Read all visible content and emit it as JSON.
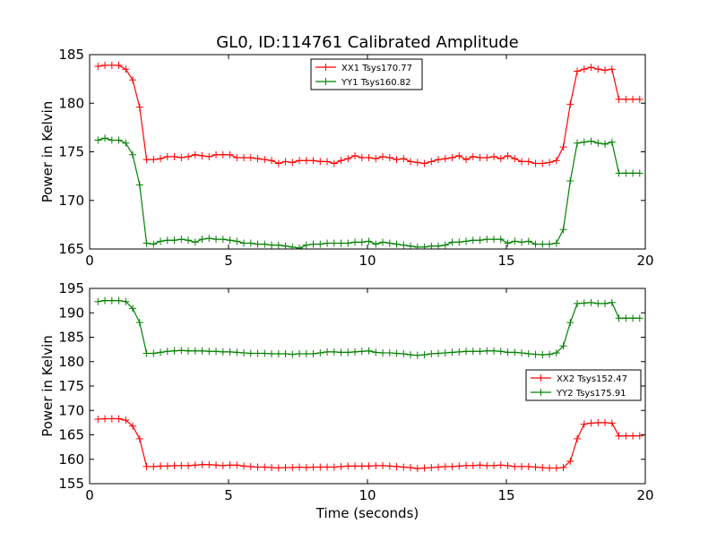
{
  "title": "GL0, ID:114761 Calibrated Amplitude",
  "xlabel": "Time (seconds)",
  "colors": {
    "XX": "#ff0000",
    "YY": "#008000"
  },
  "chart_data": [
    {
      "type": "line",
      "title": "GL0, ID:114761 Calibrated Amplitude",
      "xlabel": "",
      "ylabel": "Power in Kelvin",
      "xlim": [
        0,
        20
      ],
      "ylim": [
        165,
        185
      ],
      "xticks": [
        "0",
        "5",
        "10",
        "15",
        "20"
      ],
      "yticks": [
        "165",
        "170",
        "175",
        "180",
        "185"
      ],
      "grid": false,
      "legend_position": "top-center",
      "x": [
        0.3,
        0.55,
        0.8,
        1.05,
        1.3,
        1.55,
        1.8,
        2.05,
        2.3,
        2.55,
        2.8,
        3.05,
        3.3,
        3.55,
        3.8,
        4.05,
        4.3,
        4.55,
        4.8,
        5.05,
        5.3,
        5.55,
        5.8,
        6.05,
        6.3,
        6.55,
        6.8,
        7.05,
        7.3,
        7.55,
        7.8,
        8.05,
        8.3,
        8.55,
        8.8,
        9.05,
        9.3,
        9.55,
        9.8,
        10.05,
        10.3,
        10.55,
        10.8,
        11.05,
        11.3,
        11.55,
        11.8,
        12.05,
        12.3,
        12.55,
        12.8,
        13.05,
        13.3,
        13.55,
        13.8,
        14.05,
        14.3,
        14.55,
        14.8,
        15.05,
        15.3,
        15.55,
        15.8,
        16.05,
        16.3,
        16.55,
        16.8,
        17.05,
        17.3,
        17.55,
        17.8,
        18.05,
        18.3,
        18.55,
        18.8,
        19.05,
        19.3,
        19.55,
        19.8
      ],
      "series": [
        {
          "name": "XX1 Tsys170.77",
          "color": "#ff0000",
          "values": [
            183.8,
            183.9,
            183.9,
            183.9,
            183.5,
            182.4,
            179.6,
            174.2,
            174.2,
            174.3,
            174.5,
            174.5,
            174.4,
            174.5,
            174.7,
            174.6,
            174.5,
            174.7,
            174.7,
            174.7,
            174.4,
            174.4,
            174.4,
            174.3,
            174.2,
            174.1,
            173.8,
            174.0,
            173.9,
            174.1,
            174.1,
            174.1,
            174.0,
            174.0,
            173.8,
            174.1,
            174.3,
            174.6,
            174.4,
            174.4,
            174.3,
            174.5,
            174.4,
            174.2,
            174.3,
            174.0,
            173.9,
            173.8,
            174.0,
            174.2,
            174.3,
            174.4,
            174.6,
            174.2,
            174.5,
            174.4,
            174.4,
            174.5,
            174.3,
            174.6,
            174.3,
            174.0,
            174.0,
            173.8,
            173.8,
            173.9,
            174.1,
            175.5,
            179.9,
            183.3,
            183.5,
            183.7,
            183.5,
            183.4,
            183.5,
            180.4,
            180.4,
            180.4,
            180.4
          ]
        },
        {
          "name": "YY1 Tsys160.82",
          "color": "#008000",
          "values": [
            176.2,
            176.4,
            176.2,
            176.2,
            175.9,
            174.7,
            171.6,
            165.6,
            165.5,
            165.8,
            165.9,
            165.9,
            166.0,
            165.9,
            165.7,
            166.0,
            166.1,
            166.0,
            166.0,
            165.9,
            165.8,
            165.6,
            165.6,
            165.5,
            165.5,
            165.4,
            165.4,
            165.3,
            165.2,
            165.1,
            165.4,
            165.5,
            165.5,
            165.6,
            165.6,
            165.6,
            165.6,
            165.7,
            165.7,
            165.8,
            165.5,
            165.7,
            165.6,
            165.5,
            165.4,
            165.3,
            165.2,
            165.2,
            165.3,
            165.3,
            165.4,
            165.7,
            165.7,
            165.8,
            165.9,
            165.9,
            166.0,
            166.0,
            166.0,
            165.6,
            165.8,
            165.7,
            165.8,
            165.5,
            165.5,
            165.5,
            165.6,
            167.0,
            172.0,
            175.9,
            176.0,
            176.1,
            175.9,
            175.8,
            176.0,
            172.8,
            172.8,
            172.8,
            172.8
          ]
        }
      ]
    },
    {
      "type": "line",
      "title": "",
      "xlabel": "Time (seconds)",
      "ylabel": "Power in Kelvin",
      "xlim": [
        0,
        20
      ],
      "ylim": [
        155,
        195
      ],
      "xticks": [
        "0",
        "5",
        "10",
        "15",
        "20"
      ],
      "yticks": [
        "155",
        "160",
        "165",
        "170",
        "175",
        "180",
        "185",
        "190",
        "195"
      ],
      "grid": false,
      "legend_position": "center-right",
      "x": [
        0.3,
        0.55,
        0.8,
        1.05,
        1.3,
        1.55,
        1.8,
        2.05,
        2.3,
        2.55,
        2.8,
        3.05,
        3.3,
        3.55,
        3.8,
        4.05,
        4.3,
        4.55,
        4.8,
        5.05,
        5.3,
        5.55,
        5.8,
        6.05,
        6.3,
        6.55,
        6.8,
        7.05,
        7.3,
        7.55,
        7.8,
        8.05,
        8.3,
        8.55,
        8.8,
        9.05,
        9.3,
        9.55,
        9.8,
        10.05,
        10.3,
        10.55,
        10.8,
        11.05,
        11.3,
        11.55,
        11.8,
        12.05,
        12.3,
        12.55,
        12.8,
        13.05,
        13.3,
        13.55,
        13.8,
        14.05,
        14.3,
        14.55,
        14.8,
        15.05,
        15.3,
        15.55,
        15.8,
        16.05,
        16.3,
        16.55,
        16.8,
        17.05,
        17.3,
        17.55,
        17.8,
        18.05,
        18.3,
        18.55,
        18.8,
        19.05,
        19.3,
        19.55,
        19.8
      ],
      "series": [
        {
          "name": "XX2 Tsys152.47",
          "color": "#ff0000",
          "values": [
            168.2,
            168.3,
            168.3,
            168.3,
            168.0,
            166.8,
            164.2,
            158.5,
            158.5,
            158.6,
            158.6,
            158.7,
            158.7,
            158.7,
            158.8,
            158.9,
            158.9,
            158.8,
            158.7,
            158.8,
            158.8,
            158.6,
            158.5,
            158.4,
            158.4,
            158.3,
            158.2,
            158.3,
            158.3,
            158.4,
            158.3,
            158.4,
            158.4,
            158.4,
            158.4,
            158.5,
            158.6,
            158.6,
            158.6,
            158.6,
            158.7,
            158.7,
            158.6,
            158.5,
            158.4,
            158.3,
            158.1,
            158.2,
            158.3,
            158.4,
            158.5,
            158.5,
            158.6,
            158.7,
            158.7,
            158.8,
            158.7,
            158.7,
            158.8,
            158.7,
            158.5,
            158.5,
            158.5,
            158.4,
            158.3,
            158.2,
            158.2,
            158.3,
            159.6,
            164.2,
            167.2,
            167.4,
            167.5,
            167.5,
            167.4,
            164.8,
            164.8,
            164.8,
            164.8
          ]
        },
        {
          "name": "YY2 Tsys175.91",
          "color": "#008000",
          "values": [
            192.3,
            192.5,
            192.5,
            192.5,
            192.3,
            190.9,
            188.0,
            181.7,
            181.7,
            181.9,
            182.1,
            182.2,
            182.3,
            182.2,
            182.2,
            182.2,
            182.1,
            182.1,
            182.0,
            182.0,
            181.9,
            181.8,
            181.7,
            181.7,
            181.7,
            181.6,
            181.6,
            181.6,
            181.5,
            181.6,
            181.6,
            181.6,
            181.8,
            182.0,
            182.0,
            181.9,
            181.9,
            182.0,
            182.1,
            182.2,
            181.9,
            181.8,
            181.8,
            181.7,
            181.6,
            181.4,
            181.3,
            181.4,
            181.6,
            181.7,
            181.8,
            181.9,
            182.0,
            182.1,
            182.1,
            182.1,
            182.2,
            182.2,
            182.1,
            181.9,
            181.9,
            181.8,
            181.6,
            181.5,
            181.4,
            181.5,
            181.8,
            183.2,
            188.0,
            191.9,
            192.0,
            192.1,
            191.9,
            191.9,
            192.1,
            188.9,
            188.9,
            188.9,
            188.9
          ]
        }
      ]
    }
  ]
}
